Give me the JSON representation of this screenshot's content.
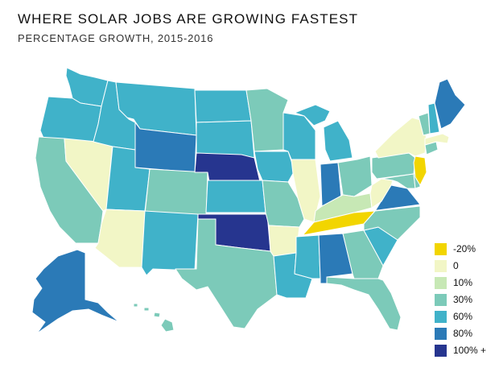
{
  "title": "WHERE SOLAR JOBS ARE GROWING FASTEST",
  "subtitle": "PERCENTAGE GROWTH, 2015-2016",
  "colors": {
    "c-20": "#f2d500",
    "c0": "#f2f6c6",
    "c10": "#c7e8b5",
    "c30": "#7ccab9",
    "c60": "#40b2c9",
    "c80": "#2b7ab7",
    "c100": "#26358f"
  },
  "legend": [
    {
      "label": "-20%",
      "color_key": "c-20"
    },
    {
      "label": "0",
      "color_key": "c0"
    },
    {
      "label": "10%",
      "color_key": "c10"
    },
    {
      "label": "30%",
      "color_key": "c30"
    },
    {
      "label": "60%",
      "color_key": "c60"
    },
    {
      "label": "80%",
      "color_key": "c80"
    },
    {
      "label": "100% +",
      "color_key": "c100"
    }
  ],
  "states": {
    "WA": "c60",
    "OR": "c60",
    "CA": "c30",
    "NV": "c0",
    "ID": "c60",
    "MT": "c60",
    "WY": "c80",
    "UT": "c60",
    "AZ": "c0",
    "CO": "c30",
    "NM": "c60",
    "ND": "c60",
    "SD": "c60",
    "NE": "c100",
    "KS": "c60",
    "OK": "c100",
    "TX": "c30",
    "MN": "c30",
    "IA": "c60",
    "MO": "c30",
    "AR": "c0",
    "LA": "c60",
    "WI": "c60",
    "IL": "c0",
    "MI": "c60",
    "IN": "c80",
    "OH": "c30",
    "KY": "c10",
    "TN": "c-20",
    "MS": "c60",
    "AL": "c80",
    "GA": "c30",
    "FL": "c30",
    "SC": "c60",
    "NC": "c30",
    "VA": "c80",
    "WV": "c0",
    "PA": "c30",
    "NY": "c0",
    "VT": "c30",
    "NH": "c60",
    "ME": "c80",
    "MA": "c0",
    "CT": "c30",
    "NJ": "c-20",
    "DE": "c30",
    "MD": "c30",
    "AK": "c80",
    "HI": "c30"
  }
}
